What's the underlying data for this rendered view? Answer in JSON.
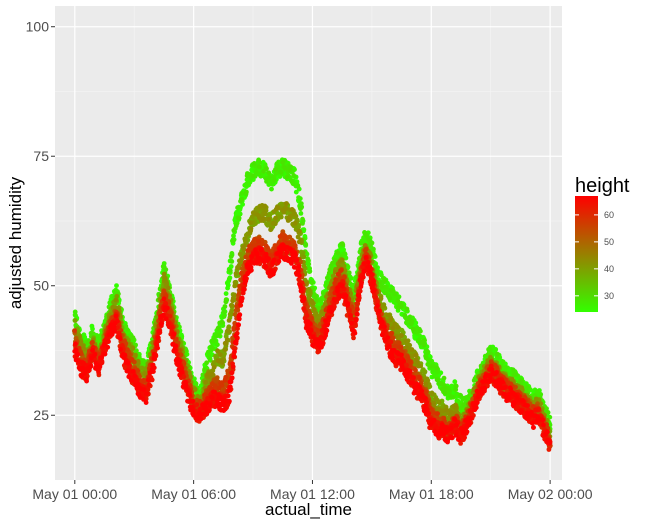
{
  "chart_data": {
    "type": "scatter",
    "title": "",
    "xlabel": "actual_time",
    "ylabel": "adjusted humidity",
    "x_unit": "hours since May 01 00:00",
    "xlim": [
      -1,
      24.6
    ],
    "ylim": [
      12.5,
      104
    ],
    "x_ticks": [
      {
        "value": 0,
        "label": "May 01 00:00"
      },
      {
        "value": 6,
        "label": "May 01 06:00"
      },
      {
        "value": 12,
        "label": "May 01 12:00"
      },
      {
        "value": 18,
        "label": "May 01 18:00"
      },
      {
        "value": 24,
        "label": "May 02 00:00"
      }
    ],
    "y_ticks": [
      25,
      50,
      75,
      100
    ],
    "grid": true,
    "color_scale": {
      "variable": "height",
      "low_color": "#33ff00",
      "high_color": "#ff0000",
      "range": [
        24,
        67
      ],
      "breaks": [
        30,
        40,
        50,
        60
      ]
    },
    "legend": {
      "title": "height",
      "position": "right"
    },
    "series_bands": [
      {
        "height": 25,
        "points": [
          [
            0.0,
            44
          ],
          [
            0.3,
            40
          ],
          [
            0.6,
            38
          ],
          [
            0.9,
            41
          ],
          [
            1.2,
            38
          ],
          [
            1.5,
            42
          ],
          [
            1.8,
            46
          ],
          [
            2.1,
            49
          ],
          [
            2.4,
            43
          ],
          [
            2.7,
            40
          ],
          [
            3.0,
            38
          ],
          [
            3.3,
            35
          ],
          [
            3.6,
            34
          ],
          [
            3.9,
            39
          ],
          [
            4.2,
            46
          ],
          [
            4.5,
            53
          ],
          [
            4.8,
            49
          ],
          [
            5.1,
            43
          ],
          [
            5.4,
            39
          ],
          [
            5.7,
            35
          ],
          [
            6.0,
            31
          ],
          [
            6.3,
            28
          ],
          [
            6.6,
            34
          ],
          [
            6.9,
            38
          ],
          [
            7.2,
            40
          ],
          [
            7.5,
            44
          ],
          [
            7.8,
            52
          ],
          [
            8.1,
            62
          ],
          [
            8.4,
            66
          ],
          [
            8.7,
            70
          ],
          [
            9.0,
            72
          ],
          [
            9.3,
            73
          ],
          [
            9.6,
            72
          ],
          [
            9.9,
            70
          ],
          [
            10.2,
            72
          ],
          [
            10.5,
            73
          ],
          [
            10.8,
            72
          ],
          [
            11.1,
            71
          ],
          [
            11.4,
            66
          ],
          [
            11.7,
            55
          ],
          [
            12.0,
            50
          ],
          [
            12.3,
            45
          ],
          [
            12.6,
            48
          ],
          [
            12.9,
            52
          ],
          [
            13.2,
            55
          ],
          [
            13.5,
            57
          ],
          [
            13.8,
            52
          ],
          [
            14.1,
            48
          ],
          [
            14.4,
            56
          ],
          [
            14.7,
            60
          ],
          [
            15.0,
            57
          ],
          [
            15.3,
            52
          ],
          [
            15.6,
            50
          ],
          [
            15.9,
            49
          ],
          [
            16.2,
            47
          ],
          [
            16.5,
            46
          ],
          [
            16.8,
            44
          ],
          [
            17.1,
            42
          ],
          [
            17.4,
            40
          ],
          [
            17.7,
            38
          ],
          [
            18.0,
            34
          ],
          [
            18.3,
            33
          ],
          [
            18.6,
            31
          ],
          [
            18.9,
            29
          ],
          [
            19.2,
            30
          ],
          [
            19.5,
            27
          ],
          [
            19.8,
            27
          ],
          [
            20.1,
            30
          ],
          [
            20.4,
            33
          ],
          [
            20.7,
            35
          ],
          [
            21.0,
            37
          ],
          [
            21.3,
            36
          ],
          [
            21.6,
            34
          ],
          [
            21.9,
            33
          ],
          [
            22.2,
            32
          ],
          [
            22.5,
            31
          ],
          [
            22.8,
            30
          ],
          [
            23.1,
            28
          ],
          [
            23.4,
            29
          ],
          [
            23.7,
            26
          ],
          [
            24.0,
            23
          ]
        ]
      },
      {
        "height": 40,
        "points": [
          [
            0.0,
            42
          ],
          [
            0.3,
            38
          ],
          [
            0.6,
            36
          ],
          [
            0.9,
            39
          ],
          [
            1.2,
            36
          ],
          [
            1.5,
            40
          ],
          [
            1.8,
            44
          ],
          [
            2.1,
            47
          ],
          [
            2.4,
            41
          ],
          [
            2.7,
            38
          ],
          [
            3.0,
            36
          ],
          [
            3.3,
            33
          ],
          [
            3.6,
            32
          ],
          [
            3.9,
            37
          ],
          [
            4.2,
            44
          ],
          [
            4.5,
            51
          ],
          [
            4.8,
            47
          ],
          [
            5.1,
            41
          ],
          [
            5.4,
            37
          ],
          [
            5.7,
            33
          ],
          [
            6.0,
            29
          ],
          [
            6.3,
            27
          ],
          [
            6.6,
            31
          ],
          [
            6.9,
            33
          ],
          [
            7.2,
            36
          ],
          [
            7.5,
            36
          ],
          [
            7.8,
            42
          ],
          [
            8.1,
            50
          ],
          [
            8.4,
            56
          ],
          [
            8.7,
            60
          ],
          [
            9.0,
            63
          ],
          [
            9.3,
            64
          ],
          [
            9.6,
            64
          ],
          [
            9.9,
            62
          ],
          [
            10.2,
            64
          ],
          [
            10.5,
            65
          ],
          [
            10.8,
            64
          ],
          [
            11.1,
            63
          ],
          [
            11.4,
            59
          ],
          [
            11.7,
            50
          ],
          [
            12.0,
            46
          ],
          [
            12.3,
            42
          ],
          [
            12.6,
            45
          ],
          [
            12.9,
            49
          ],
          [
            13.2,
            52
          ],
          [
            13.5,
            54
          ],
          [
            13.8,
            49
          ],
          [
            14.1,
            45
          ],
          [
            14.4,
            53
          ],
          [
            14.7,
            57
          ],
          [
            15.0,
            54
          ],
          [
            15.3,
            48
          ],
          [
            15.6,
            45
          ],
          [
            15.9,
            43
          ],
          [
            16.2,
            41
          ],
          [
            16.5,
            40
          ],
          [
            16.8,
            38
          ],
          [
            17.1,
            36
          ],
          [
            17.4,
            34
          ],
          [
            17.7,
            32
          ],
          [
            18.0,
            28
          ],
          [
            18.3,
            27
          ],
          [
            18.6,
            26
          ],
          [
            18.9,
            24
          ],
          [
            19.2,
            26
          ],
          [
            19.5,
            23
          ],
          [
            19.8,
            25
          ],
          [
            20.1,
            28
          ],
          [
            20.4,
            31
          ],
          [
            20.7,
            33
          ],
          [
            21.0,
            35
          ],
          [
            21.3,
            34
          ],
          [
            21.6,
            32
          ],
          [
            21.9,
            31
          ],
          [
            22.2,
            30
          ],
          [
            22.5,
            29
          ],
          [
            22.8,
            28
          ],
          [
            23.1,
            26
          ],
          [
            23.4,
            27
          ],
          [
            23.7,
            24
          ],
          [
            24.0,
            21
          ]
        ]
      },
      {
        "height": 55,
        "points": [
          [
            0.0,
            40
          ],
          [
            0.3,
            36
          ],
          [
            0.6,
            34
          ],
          [
            0.9,
            38
          ],
          [
            1.2,
            35
          ],
          [
            1.5,
            39
          ],
          [
            1.8,
            42
          ],
          [
            2.1,
            45
          ],
          [
            2.4,
            39
          ],
          [
            2.7,
            36
          ],
          [
            3.0,
            34
          ],
          [
            3.3,
            31
          ],
          [
            3.6,
            30
          ],
          [
            3.9,
            35
          ],
          [
            4.2,
            42
          ],
          [
            4.5,
            48
          ],
          [
            4.8,
            45
          ],
          [
            5.1,
            39
          ],
          [
            5.4,
            35
          ],
          [
            5.7,
            31
          ],
          [
            6.0,
            27
          ],
          [
            6.3,
            26
          ],
          [
            6.6,
            28
          ],
          [
            6.9,
            30
          ],
          [
            7.2,
            31
          ],
          [
            7.5,
            30
          ],
          [
            7.8,
            33
          ],
          [
            8.1,
            43
          ],
          [
            8.4,
            51
          ],
          [
            8.7,
            55
          ],
          [
            9.0,
            58
          ],
          [
            9.3,
            58
          ],
          [
            9.6,
            57
          ],
          [
            9.9,
            55
          ],
          [
            10.2,
            57
          ],
          [
            10.5,
            59
          ],
          [
            10.8,
            58
          ],
          [
            11.1,
            57
          ],
          [
            11.4,
            53
          ],
          [
            11.7,
            45
          ],
          [
            12.0,
            42
          ],
          [
            12.3,
            40
          ],
          [
            12.6,
            43
          ],
          [
            12.9,
            47
          ],
          [
            13.2,
            50
          ],
          [
            13.5,
            52
          ],
          [
            13.8,
            47
          ],
          [
            14.1,
            43
          ],
          [
            14.4,
            51
          ],
          [
            14.7,
            56
          ],
          [
            15.0,
            52
          ],
          [
            15.3,
            46
          ],
          [
            15.6,
            42
          ],
          [
            15.9,
            40
          ],
          [
            16.2,
            38
          ],
          [
            16.5,
            37
          ],
          [
            16.8,
            35
          ],
          [
            17.1,
            33
          ],
          [
            17.4,
            31
          ],
          [
            17.7,
            29
          ],
          [
            18.0,
            25
          ],
          [
            18.3,
            24
          ],
          [
            18.6,
            23
          ],
          [
            18.9,
            22
          ],
          [
            19.2,
            24
          ],
          [
            19.5,
            22
          ],
          [
            19.8,
            24
          ],
          [
            20.1,
            27
          ],
          [
            20.4,
            30
          ],
          [
            20.7,
            32
          ],
          [
            21.0,
            34
          ],
          [
            21.3,
            33
          ],
          [
            21.6,
            31
          ],
          [
            21.9,
            30
          ],
          [
            22.2,
            29
          ],
          [
            22.5,
            28
          ],
          [
            22.8,
            27
          ],
          [
            23.1,
            25
          ],
          [
            23.4,
            26
          ],
          [
            23.7,
            23
          ],
          [
            24.0,
            20
          ]
        ]
      },
      {
        "height": 65,
        "points": [
          [
            0.0,
            38
          ],
          [
            0.3,
            34
          ],
          [
            0.6,
            33
          ],
          [
            0.9,
            37
          ],
          [
            1.2,
            34
          ],
          [
            1.5,
            38
          ],
          [
            1.8,
            41
          ],
          [
            2.1,
            43
          ],
          [
            2.4,
            37
          ],
          [
            2.7,
            34
          ],
          [
            3.0,
            32
          ],
          [
            3.3,
            30
          ],
          [
            3.6,
            29
          ],
          [
            3.9,
            33
          ],
          [
            4.2,
            40
          ],
          [
            4.5,
            46
          ],
          [
            4.8,
            43
          ],
          [
            5.1,
            37
          ],
          [
            5.4,
            33
          ],
          [
            5.7,
            29
          ],
          [
            6.0,
            26
          ],
          [
            6.3,
            25
          ],
          [
            6.6,
            26
          ],
          [
            6.9,
            28
          ],
          [
            7.2,
            28
          ],
          [
            7.5,
            27
          ],
          [
            7.8,
            29
          ],
          [
            8.1,
            38
          ],
          [
            8.4,
            48
          ],
          [
            8.7,
            53
          ],
          [
            9.0,
            55
          ],
          [
            9.3,
            56
          ],
          [
            9.6,
            55
          ],
          [
            9.9,
            53
          ],
          [
            10.2,
            55
          ],
          [
            10.5,
            57
          ],
          [
            10.8,
            56
          ],
          [
            11.1,
            55
          ],
          [
            11.4,
            51
          ],
          [
            11.7,
            43
          ],
          [
            12.0,
            40
          ],
          [
            12.3,
            38
          ],
          [
            12.6,
            41
          ],
          [
            12.9,
            45
          ],
          [
            13.2,
            48
          ],
          [
            13.5,
            50
          ],
          [
            13.8,
            45
          ],
          [
            14.1,
            41
          ],
          [
            14.4,
            50
          ],
          [
            14.7,
            55
          ],
          [
            15.0,
            51
          ],
          [
            15.3,
            45
          ],
          [
            15.6,
            41
          ],
          [
            15.9,
            38
          ],
          [
            16.2,
            36
          ],
          [
            16.5,
            35
          ],
          [
            16.8,
            33
          ],
          [
            17.1,
            31
          ],
          [
            17.4,
            29
          ],
          [
            17.7,
            27
          ],
          [
            18.0,
            23
          ],
          [
            18.3,
            22
          ],
          [
            18.6,
            22
          ],
          [
            18.9,
            21
          ],
          [
            19.2,
            23
          ],
          [
            19.5,
            21
          ],
          [
            19.8,
            23
          ],
          [
            20.1,
            26
          ],
          [
            20.4,
            29
          ],
          [
            20.7,
            31
          ],
          [
            21.0,
            33
          ],
          [
            21.3,
            32
          ],
          [
            21.6,
            30
          ],
          [
            21.9,
            29
          ],
          [
            22.2,
            28
          ],
          [
            22.5,
            27
          ],
          [
            22.8,
            26
          ],
          [
            23.1,
            24
          ],
          [
            23.4,
            25
          ],
          [
            23.7,
            22
          ],
          [
            24.0,
            19
          ]
        ]
      }
    ]
  }
}
